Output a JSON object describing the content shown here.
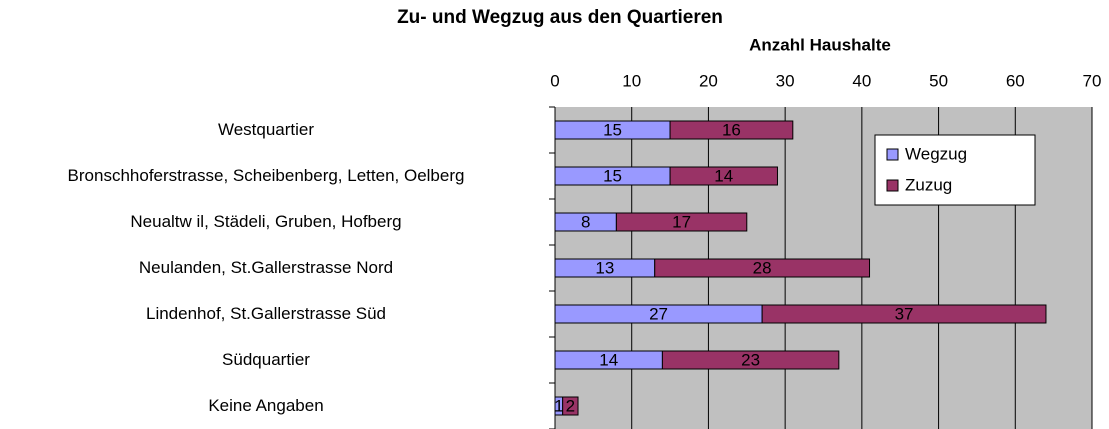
{
  "chart_data": {
    "type": "bar",
    "orientation": "horizontal",
    "stacked": true,
    "title": "Zu- und Wegzug aus den Quartieren",
    "x_label": "Anzahl Haushalte",
    "categories": [
      "Westquartier",
      "Bronschhoferstrasse, Scheibenberg, Letten, Oelberg",
      "Neualtw il, Städeli, Gruben, Hofberg",
      "Neulanden, St.Gallerstrasse Nord",
      "Lindenhof, St.Gallerstrasse Süd",
      "Südquartier",
      "Keine Angaben"
    ],
    "series": [
      {
        "name": "Wegzug",
        "color": "#9999ff",
        "values": [
          15,
          15,
          8,
          13,
          27,
          14,
          1
        ]
      },
      {
        "name": "Zuzug",
        "color": "#993366",
        "values": [
          16,
          14,
          17,
          28,
          37,
          23,
          2
        ]
      }
    ],
    "xlim": [
      0,
      70
    ],
    "xticks": [
      0,
      10,
      20,
      30,
      40,
      50,
      60,
      70
    ],
    "grid": true,
    "legend": "upper right",
    "plot_background": "#c0c0c0"
  }
}
